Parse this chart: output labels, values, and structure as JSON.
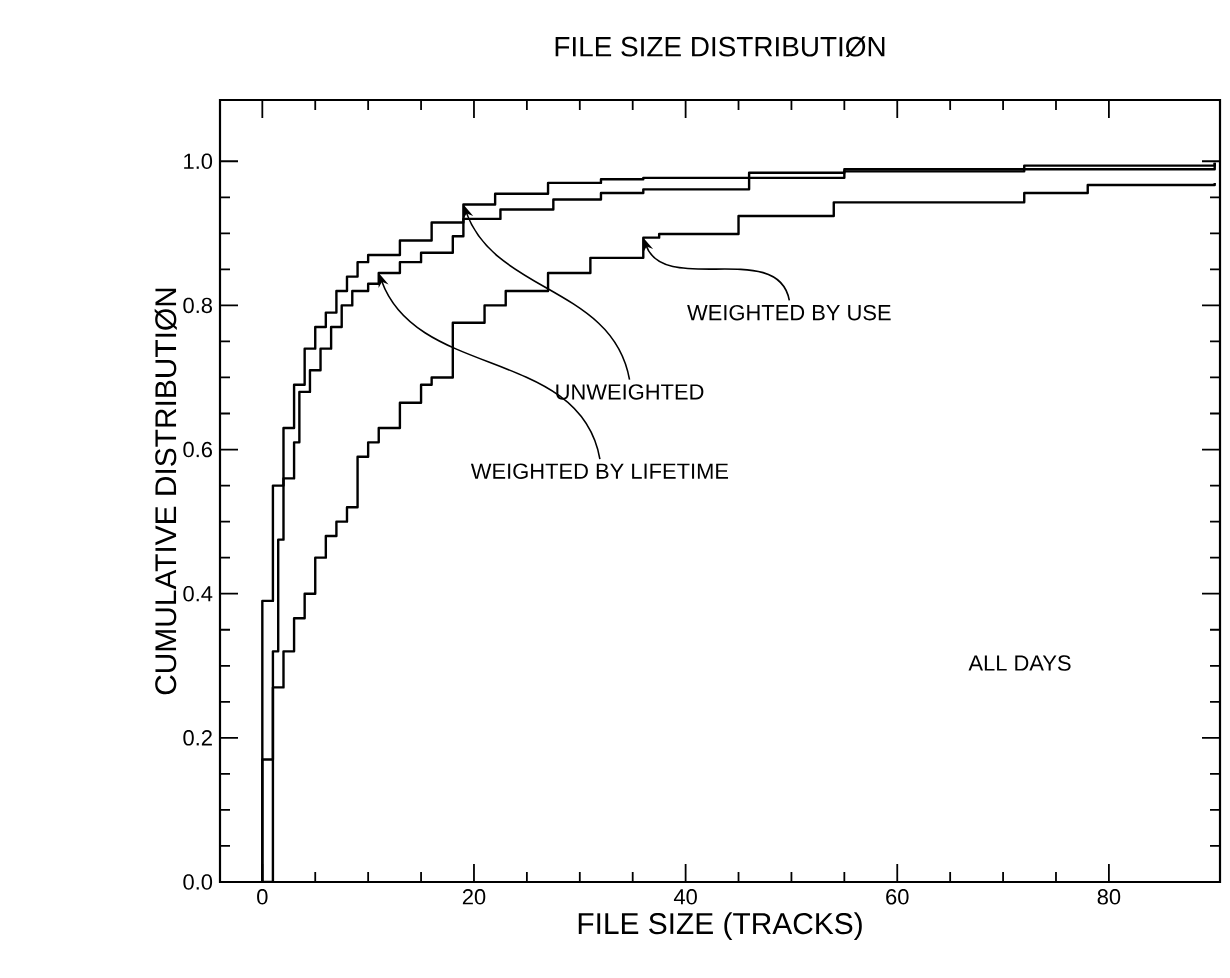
{
  "chart_data": {
    "type": "step",
    "title": "FILE SIZE DISTRIBUTIØN",
    "xlabel": "FILE SIZE (TRACKS)",
    "ylabel": "CUMULATIVE DISTRIBUTIØN",
    "xlim": [
      -4,
      90.5
    ],
    "ylim": [
      0,
      1.085
    ],
    "xticks": [
      0,
      20,
      40,
      60,
      80
    ],
    "yticks": [
      {
        "value": 0,
        "label": "0.0"
      },
      {
        "value": 0.2,
        "label": "0.2"
      },
      {
        "value": 0.4,
        "label": "0.4"
      },
      {
        "value": 0.6,
        "label": "0.6"
      },
      {
        "value": 0.8,
        "label": "0.8"
      },
      {
        "value": 1,
        "label": "1.0"
      }
    ],
    "series": [
      {
        "color": "#000000",
        "x": [
          0,
          0,
          1,
          2,
          3,
          4,
          5,
          6,
          7,
          8,
          9,
          10,
          13,
          16,
          19,
          22,
          27,
          32,
          36,
          46,
          55,
          90
        ],
        "values": [
          0,
          0.39,
          0.55,
          0.63,
          0.69,
          0.74,
          0.77,
          0.79,
          0.82,
          0.84,
          0.86,
          0.87,
          0.89,
          0.915,
          0.94,
          0.955,
          0.97,
          0.975,
          0.977,
          0.984,
          0.989,
          0.998
        ]
      },
      {
        "color": "#000000",
        "x": [
          0,
          0,
          1,
          1.5,
          2,
          3,
          3.5,
          4.5,
          5.5,
          6.5,
          7.5,
          8.5,
          10,
          11,
          13,
          15,
          18,
          19,
          22.5,
          27.5,
          32,
          36,
          46,
          55,
          72,
          90
        ],
        "values": [
          0,
          0.17,
          0.32,
          0.475,
          0.56,
          0.61,
          0.68,
          0.71,
          0.74,
          0.77,
          0.8,
          0.82,
          0.83,
          0.845,
          0.86,
          0.873,
          0.896,
          0.92,
          0.933,
          0.947,
          0.956,
          0.961,
          0.977,
          0.986,
          0.994,
          0.998
        ]
      },
      {
        "color": "#000000",
        "x": [
          0,
          1,
          2,
          3,
          4,
          5,
          6,
          7,
          8,
          9,
          10,
          11,
          13,
          15,
          16,
          18,
          21,
          23,
          27,
          31,
          36,
          37.5,
          45,
          54,
          72,
          78,
          90
        ],
        "values": [
          0,
          0.27,
          0.32,
          0.366,
          0.4,
          0.45,
          0.48,
          0.5,
          0.52,
          0.59,
          0.61,
          0.63,
          0.665,
          0.69,
          0.7,
          0.776,
          0.8,
          0.82,
          0.845,
          0.866,
          0.894,
          0.899,
          0.924,
          0.943,
          0.956,
          0.967,
          0.97
        ]
      }
    ],
    "annotations": [
      {
        "text": "WEIGHTED BY USE",
        "x": 36,
        "y": 0.894
      },
      {
        "text": "UNWEIGHTED",
        "x": 19,
        "y": 0.94
      },
      {
        "text": "WEIGHTED BY LIFETIME",
        "x": 11,
        "y": 0.845
      },
      "ALL DAYS"
    ],
    "legend": false,
    "grid": false,
    "marker": "none",
    "line_style": "solid"
  }
}
